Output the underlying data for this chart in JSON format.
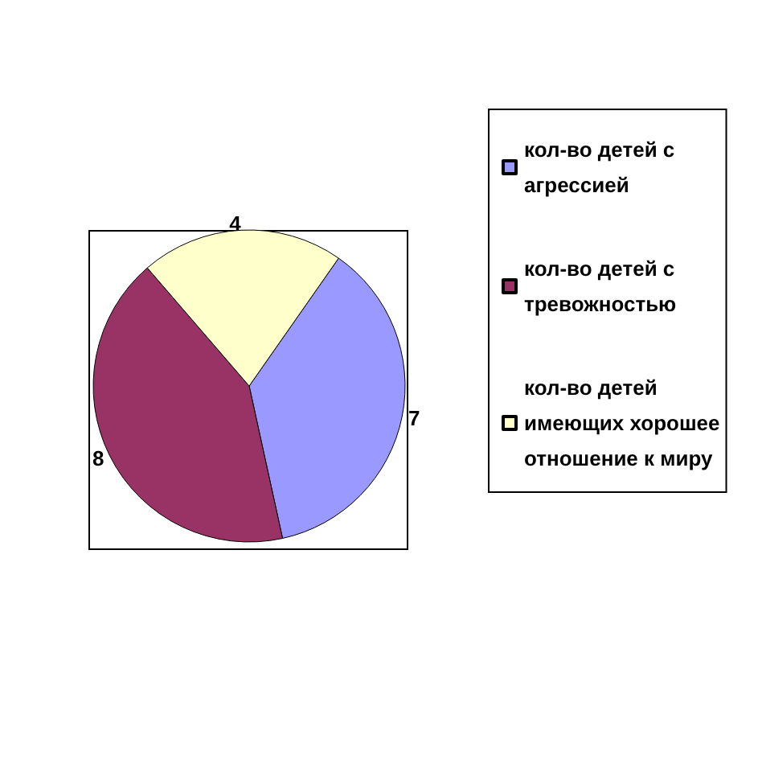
{
  "chart_data": {
    "type": "pie",
    "categories": [
      "кол-во детей с агрессией",
      "кол-во детей с тревожностью",
      "кол-во детей имеющих хорошее отношение к миру"
    ],
    "values": [
      7,
      8,
      4
    ],
    "colors": [
      "#9999ff",
      "#993366",
      "#ffffcc"
    ],
    "data_labels": true,
    "legend": "right"
  }
}
